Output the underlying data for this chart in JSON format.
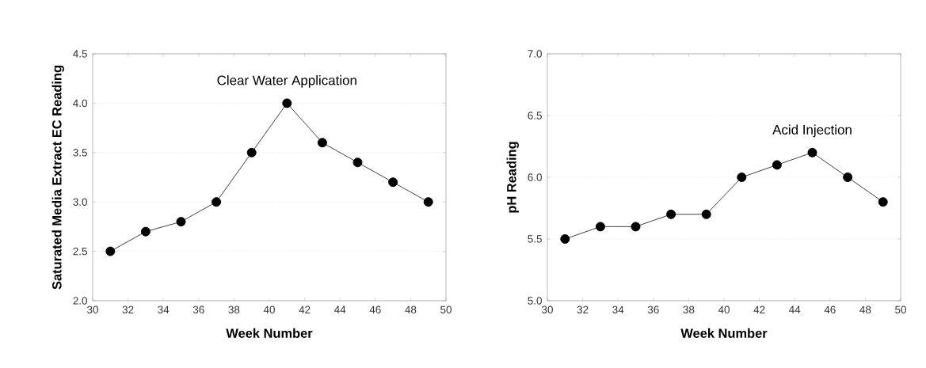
{
  "chart_data": [
    {
      "type": "line",
      "xlabel": "Week Number",
      "ylabel": "Saturated Media Extract EC Reading",
      "x": [
        31,
        33,
        35,
        37,
        39,
        41,
        43,
        45,
        47,
        49
      ],
      "values": [
        2.5,
        2.7,
        2.8,
        3.0,
        3.5,
        4.0,
        3.6,
        3.4,
        3.2,
        3.0
      ],
      "color": "#000000",
      "marker": "circle",
      "line_style": "solid",
      "grid": "y",
      "xlim": [
        30,
        50
      ],
      "xticks": [
        30,
        32,
        34,
        36,
        38,
        40,
        42,
        44,
        46,
        48,
        50
      ],
      "ylim": [
        2,
        4.5
      ],
      "yticks": [
        {
          "value": 2,
          "label": "2.0"
        },
        {
          "value": 2.5,
          "label": "2.5"
        },
        {
          "value": 3,
          "label": "3.0"
        },
        {
          "value": 3.5,
          "label": "3.5"
        },
        {
          "value": 4,
          "label": "4.0"
        },
        {
          "value": 4.5,
          "label": "4.5"
        }
      ],
      "annotations": [
        {
          "text": "Clear Water Application",
          "x": 41,
          "y": 4.0
        }
      ]
    },
    {
      "type": "line",
      "xlabel": "Week Number",
      "ylabel": "pH Reading",
      "x": [
        31,
        33,
        35,
        37,
        39,
        41,
        43,
        45,
        47,
        49
      ],
      "values": [
        5.5,
        5.6,
        5.6,
        5.7,
        5.7,
        6.0,
        6.1,
        6.2,
        6.0,
        5.8
      ],
      "color": "#000000",
      "marker": "circle",
      "line_style": "solid",
      "grid": "y",
      "xlim": [
        30,
        50
      ],
      "xticks": [
        30,
        32,
        34,
        36,
        38,
        40,
        42,
        44,
        46,
        48,
        50
      ],
      "ylim": [
        5,
        7
      ],
      "yticks": [
        {
          "value": 5,
          "label": "5.0"
        },
        {
          "value": 5.5,
          "label": "5.5"
        },
        {
          "value": 6,
          "label": "6.0"
        },
        {
          "value": 6.5,
          "label": "6.5"
        },
        {
          "value": 7,
          "label": "7.0"
        }
      ],
      "annotations": [
        {
          "text": "Acid Injection",
          "x": 45,
          "y": 6.2
        }
      ]
    }
  ]
}
